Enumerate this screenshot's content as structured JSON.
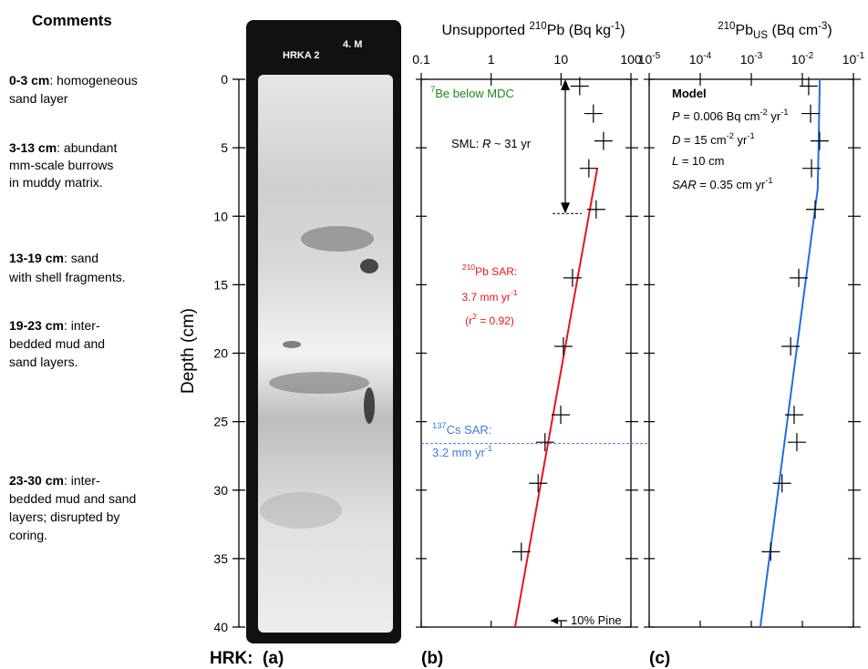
{
  "comments_title": "Comments",
  "comments": [
    [
      [
        {
          "bold": "0-3 cm"
        },
        {
          "text": ": homogeneous"
        }
      ],
      [
        {
          "text": "sand layer"
        }
      ]
    ],
    [
      [
        {
          "bold": "3-13 cm"
        },
        {
          "text": ": abundant"
        }
      ],
      [
        {
          "text": "mm-scale burrows"
        }
      ],
      [
        {
          "text": "in muddy matrix."
        }
      ]
    ],
    [
      [
        {
          "bold": "13-19 cm"
        },
        {
          "text": ": sand"
        }
      ],
      [
        {
          "text": "with shell fragments."
        }
      ]
    ],
    [
      [
        {
          "bold": "19-23 cm"
        },
        {
          "text": ": inter-"
        }
      ],
      [
        {
          "text": "bedded mud and"
        }
      ],
      [
        {
          "text": "sand layers."
        }
      ]
    ],
    [
      [
        {
          "bold": "23-30 cm"
        },
        {
          "text": ": inter-"
        }
      ],
      [
        {
          "text": "bedded mud and sand"
        }
      ],
      [
        {
          "text": "layers; disrupted by"
        }
      ],
      [
        {
          "text": "coring."
        }
      ]
    ]
  ],
  "core": {
    "photo_labels": [
      "HRKA 2",
      "4. M"
    ],
    "ylabel": "Depth (cm)",
    "ylim": [
      0,
      40
    ],
    "yticks": [
      0,
      5,
      10,
      15,
      20,
      25,
      30,
      35,
      40
    ],
    "panel_label": "HRK:  (a)"
  },
  "chart_data": [
    {
      "type": "scatter",
      "panel_label": "(b)",
      "title": [
        {
          "text": "Unsupported "
        },
        {
          "sup": "210"
        },
        {
          "text": "Pb (Bq kg"
        },
        {
          "sup": "-1"
        },
        {
          "text": ")"
        }
      ],
      "xscale": "log",
      "xlim": [
        0.1,
        100
      ],
      "xticks": [
        0.1,
        1,
        10,
        100
      ],
      "points": {
        "color": "#000000",
        "depth": [
          0.5,
          2.5,
          4.5,
          6.5,
          9.5,
          14.5,
          19.5,
          24.5,
          26.5,
          29.5,
          34.5
        ],
        "values": [
          18.5,
          29,
          40.5,
          25,
          31.8,
          14.6,
          10.8,
          9.9,
          5.9,
          4.7,
          2.7
        ]
      },
      "fit": {
        "color": "#e8141c",
        "depth": [
          6.5,
          40
        ],
        "values": [
          33,
          2.2
        ]
      },
      "sml_depth": [
        0,
        9.8
      ],
      "cs_depth": 26.6,
      "annotations": [
        {
          "color": "#1a8a1a",
          "lines": [
            [
              {
                "sup": "7"
              },
              {
                "text": "Be below MDC"
              }
            ]
          ]
        },
        {
          "color": "#000000",
          "lines": [
            [
              {
                "text": "SML: "
              },
              {
                "italic": "R"
              },
              {
                "text": " ~ 31 yr"
              }
            ]
          ]
        },
        {
          "color": "#e8141c",
          "lines": [
            [
              {
                "sup": "210"
              },
              {
                "text": "Pb SAR:"
              }
            ],
            [
              {
                "text": "3.7 mm yr"
              },
              {
                "sup": "-1"
              }
            ],
            [
              {
                "text": "(r"
              },
              {
                "sup": "2"
              },
              {
                "text": " = 0.92)"
              }
            ]
          ]
        },
        {
          "color": "#3a7de0",
          "lines": [
            [
              {
                "sup": "137"
              },
              {
                "text": "Cs SAR:"
              }
            ],
            [
              {
                "text": "3.2 mm yr"
              },
              {
                "sup": "-1"
              }
            ]
          ]
        },
        {
          "color": "#000000",
          "lines": [
            [
              {
                "text": "10% Pine"
              }
            ]
          ]
        }
      ]
    },
    {
      "type": "scatter",
      "panel_label": "(c)",
      "title": [
        {
          "sup": "210"
        },
        {
          "text": "Pb"
        },
        {
          "sub": "US"
        },
        {
          "text": " (Bq cm"
        },
        {
          "sup": "-3"
        },
        {
          "text": ")"
        }
      ],
      "xscale": "log",
      "xlim": [
        1e-05,
        0.1
      ],
      "xticks": [
        {
          "value": 1e-05,
          "label": "10",
          "exp": "-5"
        },
        {
          "value": 0.0001,
          "label": "10",
          "exp": "-4"
        },
        {
          "value": 0.001,
          "label": "10",
          "exp": "-3"
        },
        {
          "value": 0.01,
          "label": "10",
          "exp": "-2"
        },
        {
          "value": 0.1,
          "label": "10",
          "exp": "-1"
        }
      ],
      "points": {
        "color": "#000000",
        "depth": [
          0.5,
          2.5,
          4.5,
          6.5,
          9.5,
          14.5,
          19.5,
          24.5,
          26.5,
          29.5,
          34.5
        ],
        "values": [
          0.0133,
          0.0145,
          0.0218,
          0.0151,
          0.0178,
          0.0085,
          0.0059,
          0.0069,
          0.0078,
          0.004,
          0.0024
        ]
      },
      "fit": {
        "color": "#1f6fe0",
        "depth": [
          0,
          8,
          40
        ],
        "values": [
          0.022,
          0.02,
          0.0015
        ]
      },
      "annotations": [
        {
          "color": "#000000",
          "lines": [
            [
              {
                "bold": "Model"
              }
            ],
            [
              {
                "italic": "P"
              },
              {
                "text": " = 0.006 Bq cm"
              },
              {
                "sup": "-2"
              },
              {
                "text": " yr"
              },
              {
                "sup": "-1"
              }
            ],
            [
              {
                "italic": "D"
              },
              {
                "text": " = 15 cm"
              },
              {
                "sup": "-2"
              },
              {
                "text": " yr"
              },
              {
                "sup": "-1"
              }
            ],
            [
              {
                "italic": "L"
              },
              {
                "text": " = 10 cm"
              }
            ],
            [
              {
                "italic": "SAR"
              },
              {
                "text": " = 0.35 cm yr"
              },
              {
                "sup": "-1"
              }
            ]
          ]
        }
      ]
    }
  ]
}
